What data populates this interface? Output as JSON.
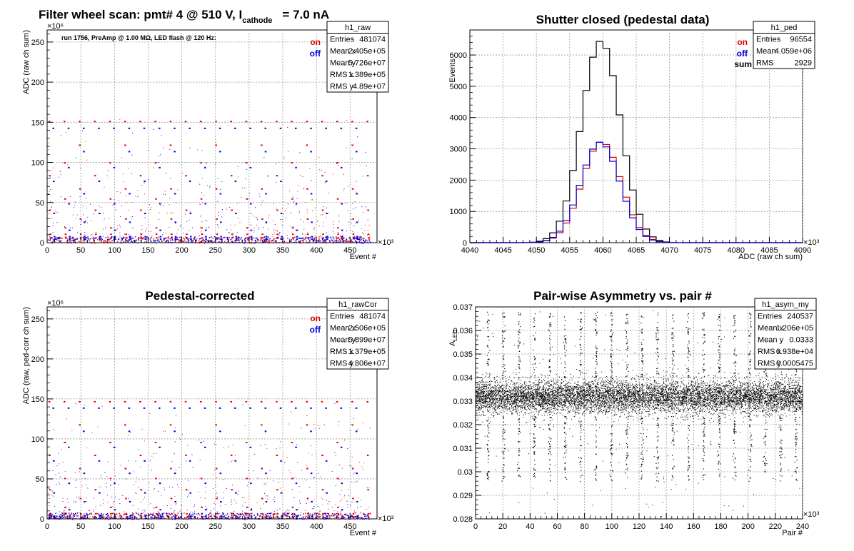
{
  "main_title": {
    "prefix": "Filter wheel scan: pmt#   4 @   510 V, I",
    "sub": "cathode",
    "suffix": "= 7.0 nA"
  },
  "colors": {
    "on": "#e00000",
    "off": "#0000e0",
    "sum": "#000000",
    "grid": "#b0b0b0"
  },
  "chart_data": [
    {
      "id": "raw",
      "type": "scatter",
      "title": "",
      "xlabel": "Event #",
      "ylabel": "ADC (raw ch sum)",
      "xlim": [
        0,
        490000
      ],
      "ylim": [
        0,
        265000000
      ],
      "x_ticks": [
        "0",
        "50",
        "100",
        "150",
        "200",
        "250",
        "300",
        "350",
        "400",
        "450"
      ],
      "x_tick_values": [
        0,
        50000,
        100000,
        150000,
        200000,
        250000,
        300000,
        350000,
        400000,
        450000
      ],
      "y_ticks": [
        "0",
        "50",
        "100",
        "150",
        "200",
        "250"
      ],
      "y_tick_values": [
        0,
        50000000,
        100000000,
        150000000,
        200000000,
        250000000
      ],
      "x_exp": "×10³",
      "y_exp": "×10⁶",
      "grid": true,
      "annotation": "run 1756, PreAmp @ 1.00 MΩ, LED flash @  120 Hz:",
      "legend": [
        {
          "name": "on",
          "color": "#e00000"
        },
        {
          "name": "off",
          "color": "#0000e0"
        }
      ],
      "stats": {
        "name": "h1_raw",
        "rows": [
          [
            "Entries",
            "481074"
          ],
          [
            "Mean x",
            "2.405e+05"
          ],
          [
            "Mean y",
            "5.726e+07"
          ],
          [
            "RMS x",
            "1.389e+05"
          ],
          [
            "RMS y",
            "4.89e+07"
          ]
        ]
      },
      "series": [
        {
          "name": "on",
          "step_levels": [
            150500000,
            121000000,
            99000000,
            83000000,
            66500000,
            54000000,
            40000000,
            29000000,
            18000000,
            10000000,
            5500000
          ],
          "period": 22500,
          "offset": 2000
        },
        {
          "name": "off",
          "step_levels": [
            142000000,
            113000000,
            93000000,
            76000000,
            60500000,
            48000000,
            36000000,
            25000000,
            15000000,
            7000000,
            4000000
          ],
          "period": 22500,
          "offset": 8000
        }
      ]
    },
    {
      "id": "ped",
      "type": "line",
      "title": "Shutter closed (pedestal data)",
      "xlabel": "ADC (raw ch sum)",
      "ylabel": "Events",
      "xlim": [
        4040000,
        4090000
      ],
      "ylim": [
        0,
        6800
      ],
      "x_ticks": [
        "4040",
        "4045",
        "4050",
        "4055",
        "4060",
        "4065",
        "4070",
        "4075",
        "4080",
        "4085",
        "4090"
      ],
      "x_tick_values": [
        4040000,
        4045000,
        4050000,
        4055000,
        4060000,
        4065000,
        4070000,
        4075000,
        4080000,
        4085000,
        4090000
      ],
      "y_ticks": [
        "0",
        "1000",
        "2000",
        "3000",
        "4000",
        "5000",
        "6000"
      ],
      "y_tick_values": [
        0,
        1000,
        2000,
        3000,
        4000,
        5000,
        6000
      ],
      "x_exp": "×10³",
      "grid": true,
      "legend": [
        {
          "name": "on",
          "color": "#e00000"
        },
        {
          "name": "off",
          "color": "#0000e0"
        },
        {
          "name": "sum",
          "color": "#000000"
        }
      ],
      "stats": {
        "name": "h1_ped",
        "rows": [
          [
            "Entries",
            "96554"
          ],
          [
            "Mean",
            "4.059e+06"
          ],
          [
            "RMS",
            "2929"
          ]
        ]
      },
      "series": [
        {
          "name": "sum",
          "mean": 4059700,
          "sigma": 2929,
          "peak": 6450
        },
        {
          "name": "on",
          "mean": 4059800,
          "sigma": 2929,
          "peak": 3230
        },
        {
          "name": "off",
          "mean": 4059600,
          "sigma": 2929,
          "peak": 3210
        }
      ]
    },
    {
      "id": "rawCor",
      "type": "scatter",
      "title": "Pedestal-corrected",
      "xlabel": "Event #",
      "ylabel": "ADC (raw, ped-corr ch sum)",
      "xlim": [
        0,
        490000
      ],
      "ylim": [
        0,
        265000000
      ],
      "x_ticks": [
        "0",
        "50",
        "100",
        "150",
        "200",
        "250",
        "300",
        "350",
        "400",
        "450"
      ],
      "x_tick_values": [
        0,
        50000,
        100000,
        150000,
        200000,
        250000,
        300000,
        350000,
        400000,
        450000
      ],
      "y_ticks": [
        "0",
        "50",
        "100",
        "150",
        "200",
        "250"
      ],
      "y_tick_values": [
        0,
        50000000,
        100000000,
        150000000,
        200000000,
        250000000
      ],
      "x_exp": "×10³",
      "y_exp": "×10⁶",
      "grid": true,
      "legend": [
        {
          "name": "on",
          "color": "#e00000"
        },
        {
          "name": "off",
          "color": "#0000e0"
        }
      ],
      "stats": {
        "name": "h1_rawCor",
        "rows": [
          [
            "Entries",
            "481074"
          ],
          [
            "Mean x",
            "2.506e+05"
          ],
          [
            "Mean y",
            "5.899e+07"
          ],
          [
            "RMS x",
            "1.379e+05"
          ],
          [
            "RMS y",
            "4.806e+07"
          ]
        ]
      },
      "series": [
        {
          "name": "on",
          "step_levels": [
            146000000,
            117000000,
            95000000,
            79000000,
            62500000,
            50000000,
            36000000,
            25000000,
            14000000,
            6000000,
            1500000
          ],
          "period": 22500,
          "offset": 2000
        },
        {
          "name": "off",
          "step_levels": [
            138000000,
            109000000,
            89000000,
            72000000,
            56500000,
            44000000,
            32000000,
            21000000,
            11000000,
            3000000,
            500000
          ],
          "period": 22500,
          "offset": 8000
        }
      ]
    },
    {
      "id": "asym",
      "type": "scatter",
      "title": "Pair-wise Asymmetry vs. pair #",
      "xlabel": "Pair #",
      "ylabel": "A",
      "ylabel_sub": "LED",
      "xlim": [
        0,
        240000
      ],
      "ylim": [
        0.028,
        0.037
      ],
      "x_ticks": [
        "0",
        "20",
        "40",
        "60",
        "80",
        "100",
        "120",
        "140",
        "160",
        "180",
        "200",
        "220",
        "240"
      ],
      "x_tick_values": [
        0,
        20000,
        40000,
        60000,
        80000,
        100000,
        120000,
        140000,
        160000,
        180000,
        200000,
        220000,
        240000
      ],
      "y_ticks": [
        "0.028",
        "0.029",
        "0.03",
        "0.031",
        "0.032",
        "0.033",
        "0.034",
        "0.035",
        "0.036",
        "0.037"
      ],
      "y_tick_values": [
        0.028,
        0.029,
        0.03,
        0.031,
        0.032,
        0.033,
        0.034,
        0.035,
        0.036,
        0.037
      ],
      "x_exp": "×10³",
      "grid": true,
      "stats": {
        "name": "h1_asym_my",
        "rows": [
          [
            "Entries",
            "240537"
          ],
          [
            "Mean x",
            "1.206e+05"
          ],
          [
            "Mean y",
            "0.0333"
          ],
          [
            "RMS x",
            "6.938e+04"
          ],
          [
            "RMS y",
            "0.0005475"
          ]
        ]
      },
      "series": [
        {
          "name": "asym",
          "mean": 0.0332,
          "band": 0.0005,
          "spike_period": 11300,
          "spike_offset": 9000
        }
      ]
    }
  ]
}
